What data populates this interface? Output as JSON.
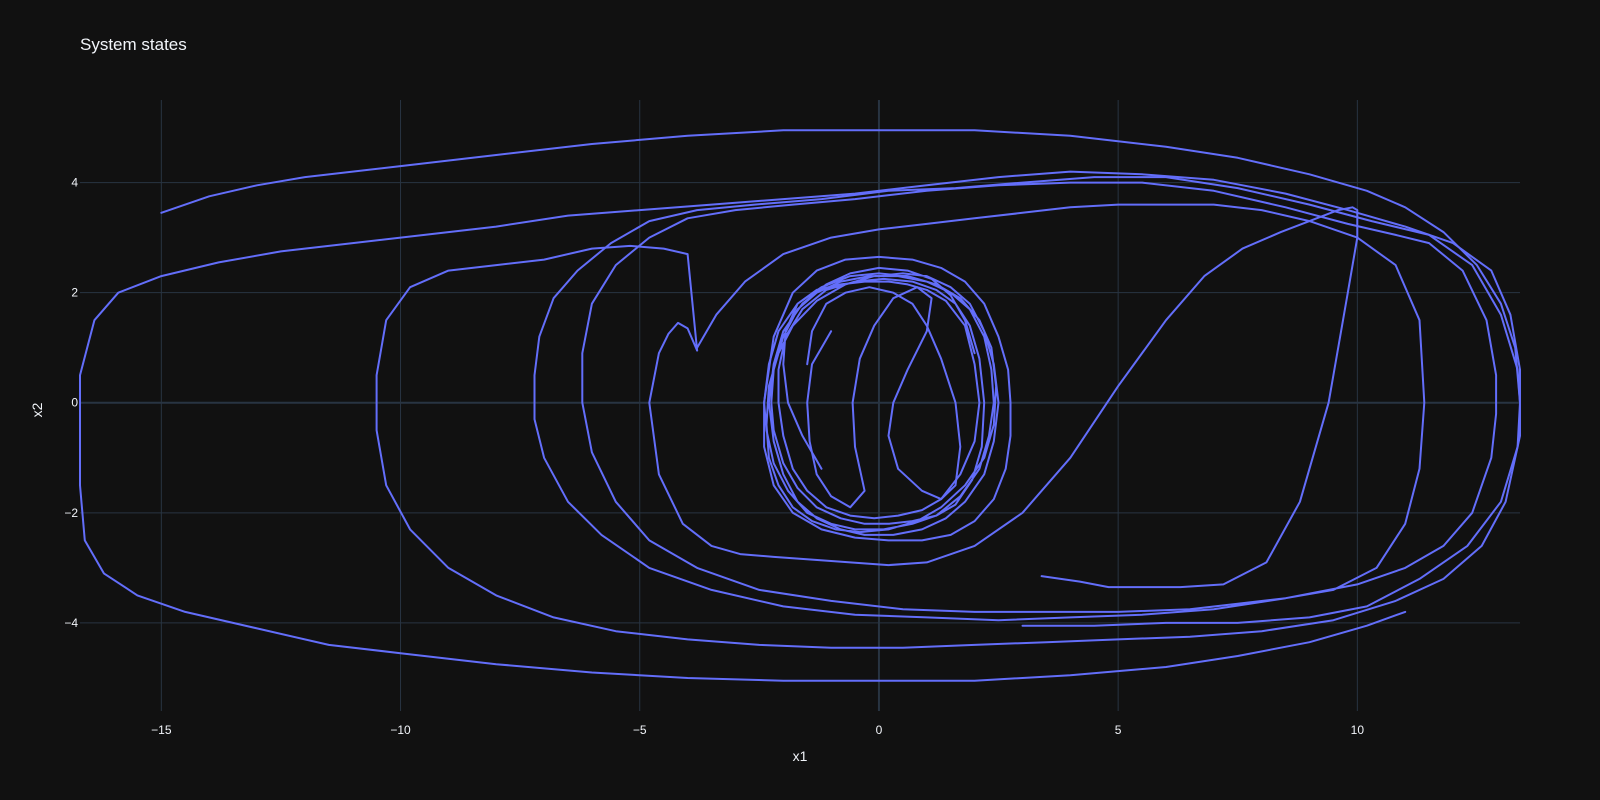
{
  "chart_data": {
    "type": "line",
    "title": "System states",
    "xlabel": "x1",
    "ylabel": "x2",
    "xlim": [
      -16.7,
      13.4
    ],
    "ylim": [
      -5.6,
      5.5
    ],
    "xticks": [
      -15,
      -10,
      -5,
      0,
      5,
      10
    ],
    "yticks": [
      -4,
      -2,
      0,
      2,
      4
    ],
    "xtick_labels": [
      "−15",
      "−10",
      "−5",
      "0",
      "5",
      "10"
    ],
    "ytick_labels": [
      "−4",
      "−2",
      "0",
      "2",
      "4"
    ],
    "grid": true,
    "legend": false,
    "colors": {
      "background": "#111111",
      "grid": "#283442",
      "text": "#f2f5fa",
      "series": "#636efa"
    },
    "series": [
      {
        "color": "#636efa",
        "x": [
          -3.8,
          -4.0,
          -4.2,
          -4.4,
          -4.6,
          -4.8,
          -4.6,
          -4.1,
          -3.5,
          -2.9,
          -2.2,
          -1.4,
          -0.6,
          0.2,
          1.0,
          2.0,
          3.0,
          4.0,
          5.0,
          6.0,
          6.8,
          7.6,
          8.4,
          9.0,
          9.6,
          9.9,
          10.0,
          10.0,
          9.8,
          9.4,
          8.8,
          8.1,
          7.2,
          6.3,
          5.5,
          4.8,
          4.2,
          3.4
        ],
        "y": [
          0.95,
          1.35,
          1.45,
          1.25,
          0.9,
          0.0,
          -1.3,
          -2.2,
          -2.6,
          -2.75,
          -2.8,
          -2.85,
          -2.9,
          -2.95,
          -2.9,
          -2.6,
          -2.0,
          -1.0,
          0.3,
          1.5,
          2.3,
          2.8,
          3.1,
          3.3,
          3.5,
          3.55,
          3.5,
          3.0,
          2.0,
          0.0,
          -1.8,
          -2.9,
          -3.3,
          -3.35,
          -3.35,
          -3.35,
          -3.25,
          -3.15
        ]
      },
      {
        "color": "#636efa",
        "x": [
          -3.8,
          -3.4,
          -2.8,
          -2.0,
          -1.0,
          0.0,
          1.0,
          2.0,
          3.0,
          4.0,
          5.0,
          6.0,
          7.0,
          8.0,
          9.0,
          10.0,
          10.8,
          11.3,
          11.4,
          11.3,
          11.0,
          10.4,
          9.5,
          8.5,
          7.5,
          6.5,
          5.0,
          3.5,
          2.0,
          0.5,
          -1.0,
          -2.5,
          -3.8,
          -4.8,
          -5.5,
          -6.0,
          -6.2,
          -6.2,
          -6.0,
          -5.5,
          -4.8,
          -4.0,
          -3.0,
          -1.8,
          -0.5,
          1.0,
          2.5,
          4.0,
          5.5,
          7.0,
          8.5,
          9.8,
          10.8,
          11.5,
          12.2,
          12.7,
          12.9,
          12.9,
          12.8,
          12.4,
          11.8,
          11.0,
          10.0,
          8.5,
          7.0,
          5.5,
          4.0,
          2.5,
          1.0,
          -0.5,
          -2.0,
          -3.5,
          -4.8,
          -5.8,
          -6.5,
          -7.0,
          -7.2,
          -7.2,
          -7.1,
          -6.8,
          -6.3,
          -5.6,
          -4.8,
          -3.8,
          -2.6,
          -1.2,
          0.2,
          1.6,
          3.0,
          4.5,
          6.0,
          7.5,
          9.0,
          10.3,
          11.5,
          12.4,
          13.0,
          13.35,
          13.4,
          13.35,
          13.0,
          12.3,
          11.3,
          10.2,
          9.0,
          7.5,
          6.0,
          4.5,
          3.0
        ],
        "y": [
          1.0,
          1.6,
          2.2,
          2.7,
          3.0,
          3.15,
          3.25,
          3.35,
          3.45,
          3.55,
          3.6,
          3.6,
          3.6,
          3.5,
          3.3,
          3.0,
          2.5,
          1.5,
          0.0,
          -1.2,
          -2.2,
          -3.0,
          -3.4,
          -3.55,
          -3.65,
          -3.75,
          -3.8,
          -3.8,
          -3.8,
          -3.75,
          -3.6,
          -3.4,
          -3.0,
          -2.5,
          -1.8,
          -0.9,
          0.0,
          0.9,
          1.8,
          2.5,
          3.0,
          3.35,
          3.5,
          3.6,
          3.7,
          3.85,
          3.95,
          4.0,
          4.0,
          3.85,
          3.55,
          3.25,
          3.05,
          2.9,
          2.4,
          1.5,
          0.5,
          -0.2,
          -1.0,
          -2.0,
          -2.6,
          -3.0,
          -3.3,
          -3.55,
          -3.75,
          -3.85,
          -3.9,
          -3.95,
          -3.9,
          -3.85,
          -3.7,
          -3.4,
          -3.0,
          -2.4,
          -1.8,
          -1.0,
          -0.3,
          0.5,
          1.2,
          1.9,
          2.4,
          2.9,
          3.3,
          3.5,
          3.6,
          3.7,
          3.85,
          3.9,
          4.0,
          4.1,
          4.1,
          3.9,
          3.6,
          3.3,
          3.05,
          2.5,
          1.6,
          0.6,
          0.0,
          -0.8,
          -1.8,
          -2.6,
          -3.2,
          -3.7,
          -3.9,
          -4.0,
          -4.0,
          -4.05,
          -4.05
        ]
      },
      {
        "color": "#636efa",
        "x": [
          -3.8,
          -4.0,
          -4.5,
          -5.2,
          -6.0,
          -7.0,
          -8.0,
          -9.0,
          -9.8,
          -10.3,
          -10.5,
          -10.5,
          -10.3,
          -9.8,
          -9.0,
          -8.0,
          -6.8,
          -5.5,
          -4.0,
          -2.5,
          -1.0,
          0.5,
          2.0,
          3.5,
          5.0,
          6.5,
          8.0,
          9.5,
          10.8,
          11.8,
          12.6,
          13.1,
          13.4,
          13.4,
          13.2,
          12.8,
          12.0,
          11.0,
          9.8,
          8.5,
          7.0,
          5.5,
          4.0,
          2.5,
          1.0,
          -0.5,
          -2.0,
          -3.5,
          -5.0,
          -6.5,
          -8.0,
          -9.5,
          -11.0,
          -12.5,
          -13.8,
          -15.0,
          -15.9,
          -16.4,
          -16.7,
          -16.7,
          -16.6,
          -16.2,
          -15.5,
          -14.5,
          -13.0,
          -11.5,
          -10.0,
          -8.0,
          -6.0,
          -4.0,
          -2.0,
          0.0,
          2.0,
          4.0,
          6.0,
          7.5,
          9.0,
          10.2,
          11.0
        ],
        "y": [
          0.95,
          2.7,
          2.8,
          2.85,
          2.8,
          2.6,
          2.5,
          2.4,
          2.1,
          1.5,
          0.5,
          -0.5,
          -1.5,
          -2.3,
          -3.0,
          -3.5,
          -3.9,
          -4.15,
          -4.3,
          -4.4,
          -4.45,
          -4.45,
          -4.4,
          -4.35,
          -4.3,
          -4.25,
          -4.15,
          -3.95,
          -3.6,
          -3.2,
          -2.6,
          -1.8,
          -0.6,
          0.6,
          1.6,
          2.4,
          2.9,
          3.2,
          3.5,
          3.8,
          4.05,
          4.15,
          4.2,
          4.1,
          3.95,
          3.8,
          3.7,
          3.6,
          3.5,
          3.4,
          3.2,
          3.05,
          2.9,
          2.75,
          2.55,
          2.3,
          2.0,
          1.5,
          0.5,
          -1.5,
          -2.5,
          -3.1,
          -3.5,
          -3.8,
          -4.1,
          -4.4,
          -4.55,
          -4.75,
          -4.9,
          -5.0,
          -5.05,
          -5.05,
          -5.05,
          -4.95,
          -4.8,
          -4.6,
          -4.35,
          -4.05,
          -3.8
        ]
      },
      {
        "color": "#636efa",
        "x": [
          -15.0,
          -14.0,
          -13.0,
          -12.0,
          -10.0,
          -8.0,
          -6.0,
          -4.0,
          -2.0,
          0.0,
          2.0,
          4.0,
          6.0,
          7.5,
          9.0,
          10.2,
          11.0,
          11.8,
          12.5,
          13.0,
          13.3,
          13.4
        ],
        "y": [
          3.45,
          3.75,
          3.95,
          4.1,
          4.3,
          4.5,
          4.7,
          4.85,
          4.95,
          4.95,
          4.95,
          4.85,
          4.65,
          4.45,
          4.15,
          3.85,
          3.55,
          3.1,
          2.5,
          1.8,
          1.0,
          0.0
        ]
      },
      {
        "color": "#636efa",
        "x": [
          -1.2,
          -1.6,
          -1.9,
          -2.0,
          -1.95,
          -1.7,
          -1.3,
          -0.8,
          -0.3,
          0.2,
          0.6,
          1.0,
          1.4,
          1.8,
          2.0,
          2.1,
          2.0,
          1.7,
          1.3,
          0.9,
          0.4,
          -0.1,
          -0.6,
          -1.1,
          -1.5,
          -1.8,
          -2.0,
          -2.1,
          -2.1,
          -1.95,
          -1.6,
          -1.1,
          -0.5,
          0.1,
          0.7,
          1.2,
          1.6,
          1.9,
          2.1,
          2.2,
          2.15,
          1.95,
          1.6,
          1.2,
          0.7,
          0.2,
          -0.3,
          -0.8,
          -1.3,
          -1.7,
          -2.0,
          -2.2,
          -2.25,
          -2.2,
          -2.0,
          -1.7,
          -1.3,
          -0.8,
          -0.2,
          0.4,
          1.0,
          1.5,
          1.9,
          2.2,
          2.35,
          2.4,
          2.3,
          2.1,
          1.7,
          1.2,
          0.7,
          0.1,
          -0.5,
          -1.0,
          -1.5,
          -1.9,
          -2.2,
          -2.35,
          -2.4,
          -2.3,
          -2.1,
          -1.7,
          -1.2,
          -0.6,
          0.0,
          0.6,
          1.2,
          1.7,
          2.1,
          2.35,
          2.45,
          2.4,
          2.2,
          1.8,
          1.3,
          0.8,
          0.2,
          -0.4,
          -0.9,
          -1.4,
          -1.8,
          -2.1,
          -2.3,
          -2.35,
          -2.3,
          -2.1,
          -1.8,
          -1.3,
          -0.7,
          -0.1,
          0.5,
          1.0,
          1.5,
          1.9,
          2.2,
          2.4,
          2.5,
          2.4,
          2.2,
          1.8,
          1.4,
          0.9,
          0.3,
          -0.3,
          -0.8,
          -1.3,
          -1.7,
          -2.0,
          -2.2,
          -2.3,
          -2.2,
          -2.0,
          -1.6,
          -1.1,
          -0.6,
          0.0,
          0.6,
          1.1,
          1.5,
          1.8,
          2.0
        ],
        "y": [
          -1.2,
          -0.6,
          0.0,
          0.7,
          1.3,
          1.8,
          2.05,
          2.15,
          2.2,
          2.2,
          2.15,
          2.05,
          1.85,
          1.4,
          0.7,
          0.0,
          -0.7,
          -1.3,
          -1.75,
          -1.95,
          -2.05,
          -2.1,
          -2.05,
          -1.9,
          -1.6,
          -1.2,
          -0.6,
          0.0,
          0.6,
          1.2,
          1.7,
          2.05,
          2.2,
          2.25,
          2.2,
          2.05,
          1.8,
          1.4,
          0.8,
          0.0,
          -0.8,
          -1.4,
          -1.85,
          -2.05,
          -2.15,
          -2.2,
          -2.2,
          -2.1,
          -1.9,
          -1.55,
          -1.1,
          -0.5,
          0.0,
          0.6,
          1.2,
          1.7,
          2.0,
          2.2,
          2.3,
          2.3,
          2.2,
          2.0,
          1.7,
          1.2,
          0.6,
          0.0,
          -0.6,
          -1.2,
          -1.7,
          -2.05,
          -2.2,
          -2.3,
          -2.3,
          -2.2,
          -2.0,
          -1.6,
          -1.1,
          -0.5,
          0.0,
          0.7,
          1.3,
          1.8,
          2.1,
          2.3,
          2.35,
          2.3,
          2.15,
          1.9,
          1.5,
          1.0,
          0.3,
          -0.4,
          -1.0,
          -1.5,
          -1.9,
          -2.15,
          -2.3,
          -2.35,
          -2.3,
          -2.15,
          -1.9,
          -1.5,
          -1.0,
          -0.4,
          0.3,
          0.9,
          1.4,
          1.85,
          2.15,
          2.3,
          2.35,
          2.3,
          2.1,
          1.8,
          1.3,
          0.7,
          0.0,
          -0.7,
          -1.3,
          -1.8,
          -2.1,
          -2.3,
          -2.4,
          -2.4,
          -2.3,
          -2.1,
          -1.8,
          -1.3,
          -0.7,
          0.0,
          0.7,
          1.3,
          1.8,
          2.15,
          2.35,
          2.45,
          2.4,
          2.25,
          1.95,
          1.5,
          0.9
        ]
      },
      {
        "color": "#636efa",
        "x": [
          -2.4,
          -2.2,
          -1.8,
          -1.3,
          -0.7,
          0.0,
          0.7,
          1.3,
          1.8,
          2.2,
          2.5,
          2.7,
          2.75,
          2.75,
          2.65,
          2.4,
          2.0,
          1.5,
          0.9,
          0.2,
          -0.5,
          -1.2,
          -1.8,
          -2.2,
          -2.4,
          -2.4
        ],
        "y": [
          0.0,
          1.2,
          2.0,
          2.4,
          2.6,
          2.65,
          2.6,
          2.45,
          2.2,
          1.8,
          1.2,
          0.6,
          0.0,
          -0.6,
          -1.2,
          -1.75,
          -2.15,
          -2.4,
          -2.5,
          -2.5,
          -2.45,
          -2.3,
          -2.0,
          -1.5,
          -0.8,
          0.0
        ]
      },
      {
        "color": "#636efa",
        "x": [
          -1.0,
          -1.4,
          -1.5,
          -1.45,
          -1.3,
          -1.0,
          -0.6,
          -0.3,
          -0.5,
          -0.55,
          -0.4,
          -0.1,
          0.3,
          0.8,
          1.1,
          1.0,
          0.6,
          0.3,
          0.2,
          0.4,
          0.9,
          1.3,
          1.6,
          1.7,
          1.6,
          1.3,
          1.0,
          0.7,
          0.3,
          -0.2,
          -0.7,
          -1.1,
          -1.4,
          -1.5
        ],
        "y": [
          1.3,
          0.7,
          0.0,
          -0.7,
          -1.3,
          -1.7,
          -1.9,
          -1.6,
          -0.8,
          0.0,
          0.8,
          1.4,
          1.9,
          2.1,
          1.9,
          1.3,
          0.6,
          0.0,
          -0.6,
          -1.2,
          -1.6,
          -1.75,
          -1.5,
          -0.8,
          0.0,
          0.8,
          1.4,
          1.8,
          2.0,
          2.1,
          2.0,
          1.8,
          1.3,
          0.7
        ]
      }
    ]
  }
}
